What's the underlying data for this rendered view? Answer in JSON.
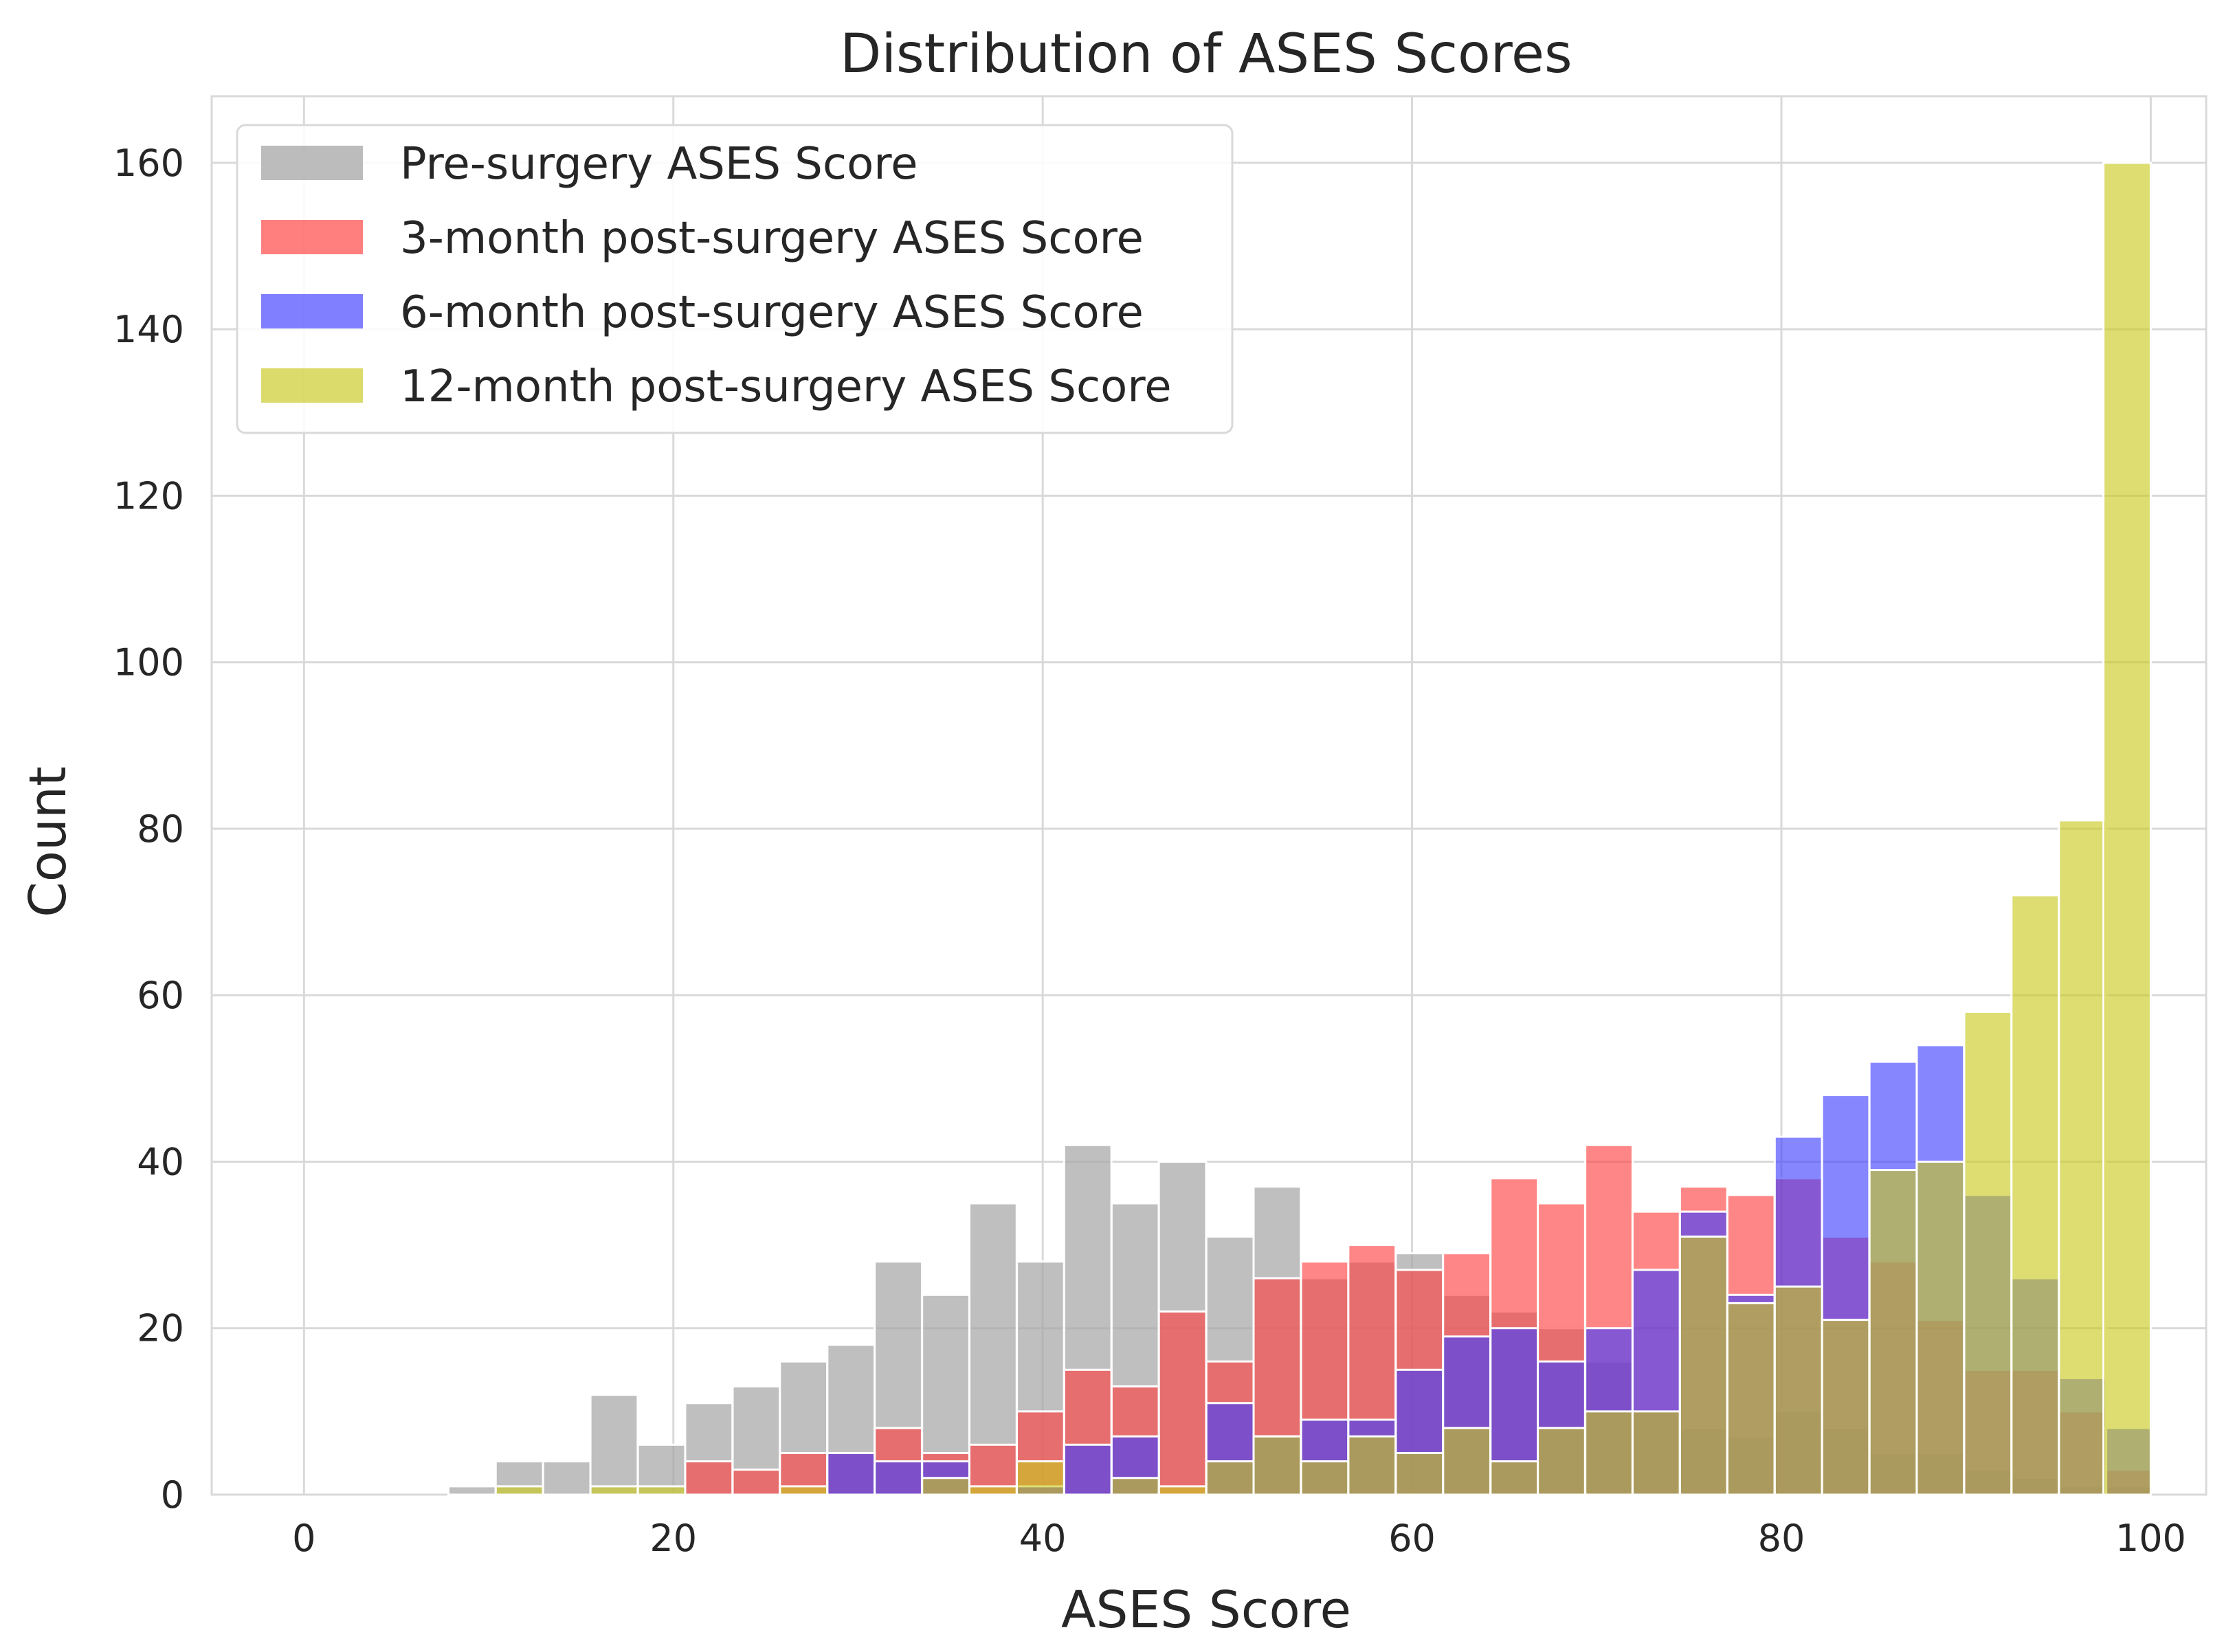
{
  "chart_data": {
    "type": "histogram",
    "title": "Distribution of ASES Scores",
    "xlabel": "ASES Score",
    "ylabel": "Count",
    "xlim": [
      -5,
      103
    ],
    "ylim": [
      0,
      168
    ],
    "xticks": [
      0,
      20,
      40,
      60,
      80,
      100
    ],
    "yticks": [
      0,
      20,
      40,
      60,
      80,
      100,
      120,
      140,
      160
    ],
    "grid": true,
    "legend_position": "top-left",
    "bin_width": 2.56,
    "bin_starts": [
      10.38,
      12.95,
      15.51,
      18.08,
      20.64,
      23.21,
      25.77,
      28.34,
      30.9,
      33.47,
      36.03,
      38.6,
      41.16,
      43.73,
      46.29,
      48.86,
      51.42,
      53.99,
      56.55,
      59.12,
      61.68,
      64.25,
      66.81,
      69.38,
      71.94,
      74.51,
      77.07,
      79.64,
      82.2,
      84.77,
      87.33,
      89.9,
      92.46,
      95.03,
      97.44
    ],
    "series": [
      {
        "name": "Pre-surgery ASES Score",
        "color": "#a6a6a6",
        "bin_starts": [
          7.82,
          10.38,
          12.95,
          15.51,
          18.08,
          20.64,
          23.21,
          25.77,
          28.34,
          30.9,
          33.47,
          36.03,
          38.6,
          41.16,
          43.73,
          46.29,
          48.86,
          51.42,
          53.99,
          56.55,
          59.12,
          61.68,
          64.25,
          66.81,
          69.38,
          71.94,
          74.51,
          77.07,
          79.64,
          82.2,
          84.77,
          87.33,
          89.9,
          92.46,
          95.03,
          97.44
        ],
        "values": [
          1,
          4,
          4,
          12,
          6,
          11,
          13,
          16,
          18,
          28,
          24,
          35,
          28,
          42,
          35,
          40,
          31,
          37,
          26,
          28,
          29,
          24,
          22,
          20,
          16,
          10,
          8,
          7,
          10,
          8,
          5,
          5,
          3,
          2,
          1,
          1
        ]
      },
      {
        "name": "3-month post-surgery ASES Score",
        "color": "#ff3b3b",
        "values": [
          0,
          0,
          0,
          0,
          4,
          3,
          5,
          5,
          8,
          5,
          6,
          10,
          15,
          13,
          22,
          16,
          26,
          28,
          30,
          27,
          29,
          38,
          35,
          42,
          34,
          37,
          36,
          38,
          31,
          28,
          21,
          15,
          15,
          10,
          3
        ]
      },
      {
        "name": "6-month post-surgery ASES Score",
        "color": "#3b3bff",
        "values": [
          0,
          0,
          0,
          0,
          0,
          0,
          0,
          5,
          4,
          4,
          0,
          1,
          6,
          7,
          0,
          11,
          7,
          9,
          9,
          15,
          19,
          20,
          16,
          20,
          27,
          34,
          24,
          43,
          48,
          52,
          54,
          36,
          26,
          14,
          8
        ]
      },
      {
        "name": "12-month post-surgery ASES Score",
        "color": "#c8c81c",
        "values": [
          1,
          0,
          1,
          1,
          0,
          0,
          1,
          0,
          0,
          2,
          1,
          4,
          0,
          2,
          1,
          4,
          7,
          4,
          7,
          5,
          8,
          4,
          8,
          10,
          10,
          31,
          23,
          25,
          21,
          39,
          40,
          58,
          72,
          81,
          160
        ]
      }
    ]
  }
}
